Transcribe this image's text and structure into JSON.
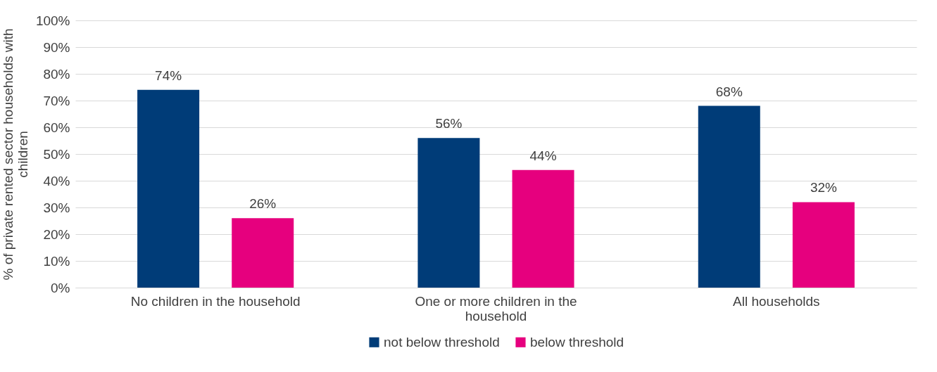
{
  "chart_data": {
    "type": "bar",
    "ylabel": "% of private rented sector households with children",
    "categories": [
      "No children in the household",
      "One or more children in the household",
      "All households"
    ],
    "series": [
      {
        "name": "not below threshold",
        "color": "#003c78",
        "values": [
          74,
          56,
          68
        ],
        "value_labels": [
          "74%",
          "56%",
          "68%"
        ]
      },
      {
        "name": "below threshold",
        "color": "#e6007e",
        "values": [
          26,
          44,
          32
        ],
        "value_labels": [
          "26%",
          "44%",
          "32%"
        ]
      }
    ],
    "ylim": [
      0,
      100
    ],
    "yticks": [
      {
        "value": 0,
        "label": "0%"
      },
      {
        "value": 10,
        "label": "10%"
      },
      {
        "value": 20,
        "label": "20%"
      },
      {
        "value": 30,
        "label": "30%"
      },
      {
        "value": 40,
        "label": "40%"
      },
      {
        "value": 50,
        "label": "50%"
      },
      {
        "value": 60,
        "label": "60%"
      },
      {
        "value": 70,
        "label": "70%"
      },
      {
        "value": 80,
        "label": "80%"
      },
      {
        "value": 90,
        "label": "90%"
      },
      {
        "value": 100,
        "label": "100%"
      }
    ],
    "grid": "y",
    "legend": "bottom"
  }
}
